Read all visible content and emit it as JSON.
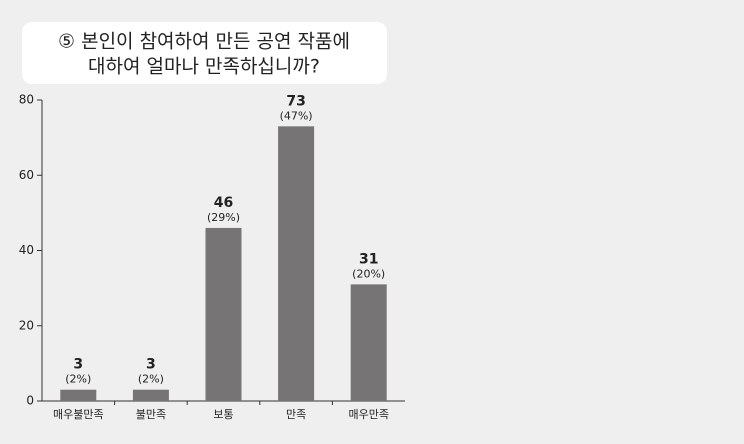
{
  "chart_data": {
    "type": "bar",
    "title": [
      "⑤ 본인이 참여하여 만든 공연 작품에",
      "대하여 얼마나 만족하십니까?"
    ],
    "categories": [
      "매우불만족",
      "불만족",
      "보통",
      "만족",
      "매우만족"
    ],
    "values": [
      3,
      3,
      46,
      73,
      31
    ],
    "shares": {
      "values": [
        2,
        2,
        29,
        47,
        20
      ],
      "value_labels": [
        "(2%)",
        "(2%)",
        "(29%)",
        "(47%)",
        "(20%)"
      ]
    },
    "color": "#767474",
    "ylim": [
      0,
      80
    ],
    "yticks": [
      0,
      20,
      40,
      60,
      80
    ],
    "grid": false
  }
}
